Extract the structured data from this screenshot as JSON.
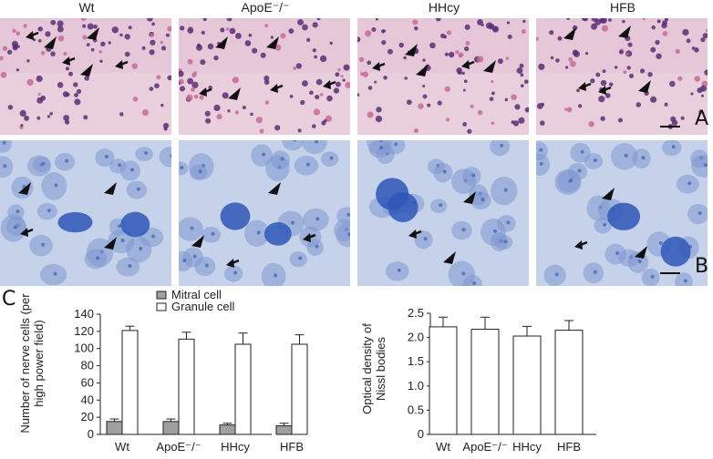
{
  "columns": [
    "Wt",
    "ApoE⁻/⁻",
    "HHcy",
    "HFB"
  ],
  "panels": {
    "a": "A",
    "b": "B",
    "c": "C"
  },
  "colors": {
    "he_bg": "#e8cfdb",
    "he_cell": "#5a2e78",
    "he_pink": "#c86a9a",
    "nissl_bg": "#c6d2ea",
    "nissl_cell": "#7f97cf",
    "nissl_dark": "#2f57b8",
    "bar_gray": "#a0a0a0",
    "bar_white": "#ffffff"
  },
  "chart_data": [
    {
      "type": "bar",
      "categories": [
        "Wt",
        "ApoE⁻/⁻",
        "HHcy",
        "HFB"
      ],
      "series": [
        {
          "name": "Mitral cell",
          "values": [
            15,
            15,
            11,
            10
          ],
          "errors": [
            3,
            3,
            2,
            3
          ]
        },
        {
          "name": "Granule cell",
          "values": [
            121,
            111,
            105,
            105
          ],
          "errors": [
            5,
            8,
            13,
            11
          ]
        }
      ],
      "ylabel": "Number of nerve cells (per high power field)",
      "ylim": [
        0,
        140
      ],
      "yticks": [
        "0",
        "20",
        "40",
        "60",
        "80",
        "100",
        "120",
        "140"
      ],
      "legend": "top"
    },
    {
      "type": "bar",
      "categories": [
        "Wt",
        "ApoE⁻/⁻",
        "HHcy",
        "HFB"
      ],
      "values": [
        2.22,
        2.17,
        2.03,
        2.15
      ],
      "errors": [
        0.2,
        0.25,
        0.2,
        0.2
      ],
      "ylabel": "Optical density of Nissl bodies",
      "ylim": [
        0,
        2.5
      ],
      "yticks": [
        "0",
        "0.5",
        "1.0",
        "1.5",
        "2.0",
        "2.5"
      ]
    }
  ]
}
